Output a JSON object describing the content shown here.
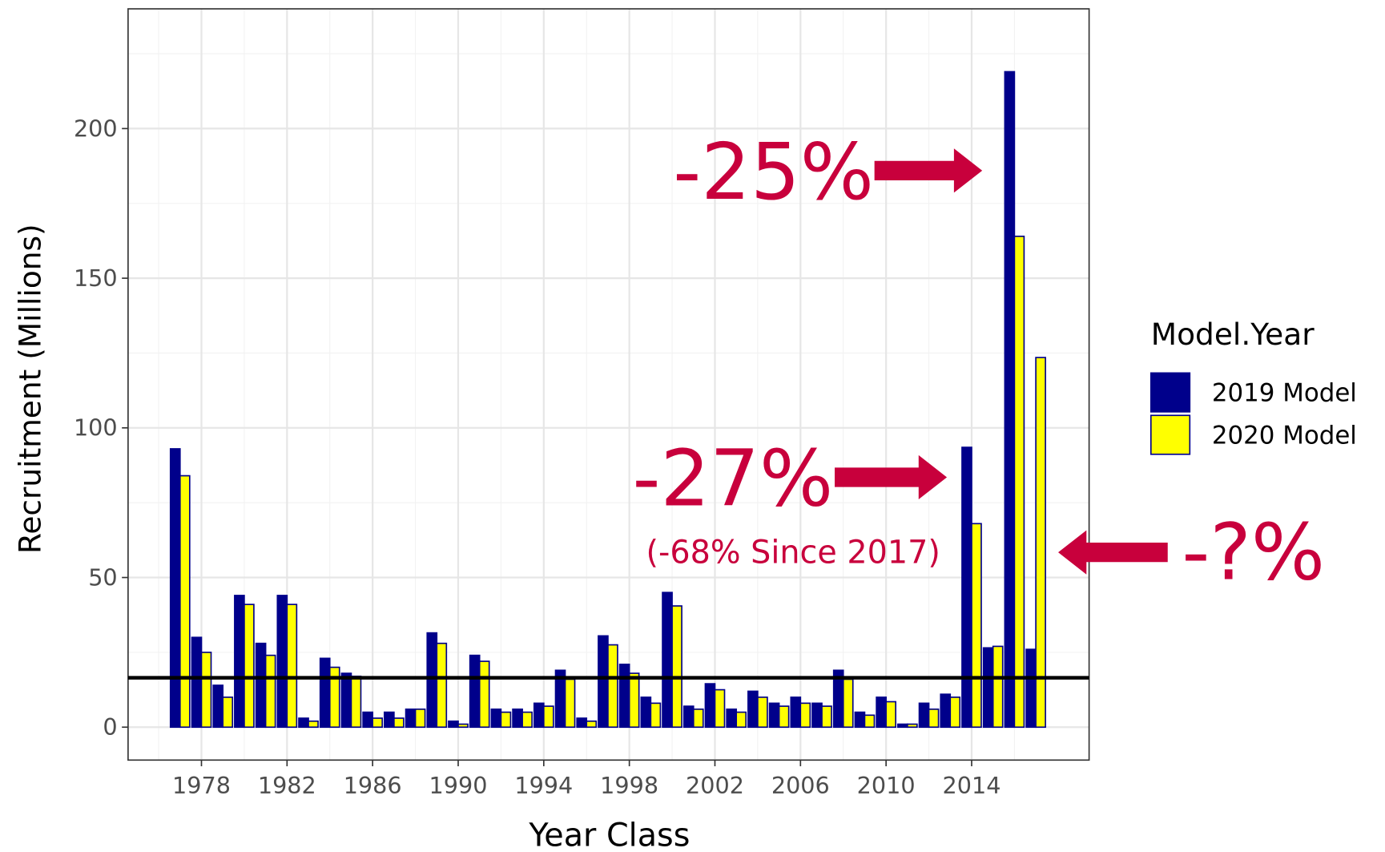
{
  "chart_data": {
    "type": "bar",
    "x_label": "Year Class",
    "y_label": "Recruitment (Millions)",
    "x": [
      1977,
      1978,
      1979,
      1980,
      1981,
      1982,
      1983,
      1984,
      1985,
      1986,
      1987,
      1988,
      1989,
      1990,
      1991,
      1992,
      1993,
      1994,
      1995,
      1996,
      1997,
      1998,
      1999,
      2000,
      2001,
      2002,
      2003,
      2004,
      2005,
      2006,
      2007,
      2008,
      2009,
      2010,
      2011,
      2012,
      2013,
      2014,
      2015,
      2016,
      2017
    ],
    "series": [
      {
        "name": "2019 Model",
        "color": "#00008b",
        "values": [
          93,
          30,
          14,
          44,
          28,
          44,
          3,
          23,
          18,
          5,
          5,
          6,
          31.5,
          2,
          24,
          6,
          6,
          8,
          19,
          3,
          30.5,
          21,
          10,
          45,
          7,
          14.5,
          6,
          12,
          8,
          10,
          8,
          19,
          5,
          10,
          1,
          8,
          11,
          93.5,
          26.5,
          219,
          26
        ]
      },
      {
        "name": "2020 Model",
        "color": "#ffff00",
        "values": [
          84,
          25,
          10,
          41,
          24,
          41,
          2,
          20,
          17,
          3,
          3,
          6,
          28,
          1,
          22,
          5,
          5,
          7,
          16,
          2,
          27.5,
          18,
          8,
          40.5,
          6,
          12.5,
          5,
          10,
          7,
          8,
          7,
          16,
          4,
          8.5,
          1,
          6,
          10,
          68,
          27,
          164,
          123.5
        ]
      }
    ],
    "bar_outline": "#00008b",
    "hline": 16.5,
    "xlim": [
      1974.57,
      2019.49
    ],
    "xticks": [
      1978,
      1982,
      1986,
      1990,
      1994,
      1998,
      2002,
      2006,
      2010,
      2014
    ],
    "ylim": [
      -11,
      240
    ],
    "yticks": [
      0,
      50,
      100,
      150,
      200
    ],
    "grid": true,
    "legend_title": "Model.Year",
    "legend_position": "right",
    "annotations": [
      "-25%",
      "-27%",
      "(-68% Since 2017)",
      "-?%"
    ],
    "annotation_color": "#c8003c"
  }
}
